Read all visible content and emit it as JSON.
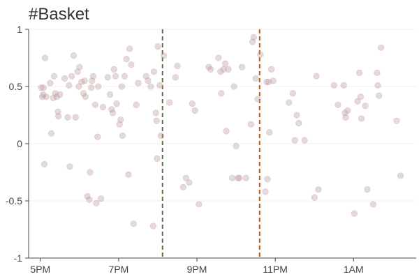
{
  "chart_data": {
    "type": "scatter",
    "title": "#Basket",
    "xlabel": "",
    "ylabel": "",
    "x_unit": "hours_after_5pm",
    "xlim": [
      -0.3,
      9.6
    ],
    "ylim": [
      -1,
      1
    ],
    "x_ticks": [
      {
        "value": 0,
        "label": "5PM"
      },
      {
        "value": 2,
        "label": "7PM"
      },
      {
        "value": 4,
        "label": "9PM"
      },
      {
        "value": 6,
        "label": "11PM"
      },
      {
        "value": 8,
        "label": "1AM"
      }
    ],
    "y_ticks": [
      {
        "value": 1,
        "label": "1"
      },
      {
        "value": 0.5,
        "label": "0.5"
      },
      {
        "value": 0,
        "label": "0"
      },
      {
        "value": -0.5,
        "label": "-0.5"
      },
      {
        "value": -1,
        "label": "-1"
      }
    ],
    "grid": true,
    "point_color": "#bc9a9a",
    "vertical_lines": [
      {
        "x": 3.12,
        "color": "#5c6e4a",
        "style": "dashed"
      },
      {
        "x": 5.6,
        "color": "#c0580e",
        "style": "dashed"
      }
    ],
    "points": [
      [
        0.02,
        0.49
      ],
      [
        0.05,
        0.41
      ],
      [
        0.07,
        0.43
      ],
      [
        0.08,
        0.49
      ],
      [
        0.1,
        -0.18
      ],
      [
        0.12,
        0.75
      ],
      [
        0.15,
        0.41
      ],
      [
        0.25,
        0.53
      ],
      [
        0.28,
        0.09
      ],
      [
        0.33,
        0.4
      ],
      [
        0.35,
        0.59
      ],
      [
        0.38,
        0.44
      ],
      [
        0.42,
        0.41
      ],
      [
        0.45,
        0.28
      ],
      [
        0.46,
        0.24
      ],
      [
        0.5,
        0.43
      ],
      [
        0.62,
        0.57
      ],
      [
        0.7,
        0.23
      ],
      [
        0.73,
        0.51
      ],
      [
        0.75,
        -0.2
      ],
      [
        0.8,
        0.59
      ],
      [
        0.85,
        0.77
      ],
      [
        0.9,
        0.23
      ],
      [
        0.95,
        0.63
      ],
      [
        0.98,
        0.5
      ],
      [
        1.0,
        0.67
      ],
      [
        1.05,
        0.54
      ],
      [
        1.1,
        0.44
      ],
      [
        1.13,
        0.55
      ],
      [
        1.15,
        0.41
      ],
      [
        1.2,
        -0.46
      ],
      [
        1.25,
        -0.49
      ],
      [
        1.27,
        -0.25
      ],
      [
        1.3,
        0.49
      ],
      [
        1.32,
        0.55
      ],
      [
        1.35,
        0.59
      ],
      [
        1.4,
        0.34
      ],
      [
        1.43,
        -0.52
      ],
      [
        1.46,
        0.06
      ],
      [
        1.48,
        0.5
      ],
      [
        1.55,
        -0.48
      ],
      [
        1.6,
        0.32
      ],
      [
        1.72,
        0.58
      ],
      [
        1.78,
        0.43
      ],
      [
        1.82,
        0.3
      ],
      [
        1.85,
        0.27
      ],
      [
        1.88,
        0.65
      ],
      [
        1.92,
        0.59
      ],
      [
        1.95,
        0.35
      ],
      [
        2.02,
        0.17
      ],
      [
        2.05,
        0.21
      ],
      [
        2.08,
        0.5
      ],
      [
        2.1,
        0.07
      ],
      [
        2.15,
        0.59
      ],
      [
        2.2,
        0.74
      ],
      [
        2.25,
        -0.27
      ],
      [
        2.28,
        0.83
      ],
      [
        2.32,
        0.69
      ],
      [
        2.38,
        -0.7
      ],
      [
        2.45,
        0.34
      ],
      [
        2.5,
        0.53
      ],
      [
        2.7,
        0.59
      ],
      [
        2.75,
        0.55
      ],
      [
        2.82,
        0.5
      ],
      [
        2.88,
        -0.72
      ],
      [
        2.9,
        0.63
      ],
      [
        2.95,
        0.27
      ],
      [
        2.97,
        0.2
      ],
      [
        2.98,
        -0.13
      ],
      [
        3.0,
        0.85
      ],
      [
        3.05,
        0.51
      ],
      [
        3.08,
        0.07
      ],
      [
        3.15,
        0.77
      ],
      [
        3.3,
        0.36
      ],
      [
        3.45,
        0.58
      ],
      [
        3.5,
        0.68
      ],
      [
        3.65,
        -0.38
      ],
      [
        3.72,
        -0.3
      ],
      [
        3.8,
        -0.34
      ],
      [
        3.88,
        0.35
      ],
      [
        3.95,
        0.29
      ],
      [
        4.05,
        -0.53
      ],
      [
        4.3,
        0.67
      ],
      [
        4.35,
        0.65
      ],
      [
        4.55,
        0.75
      ],
      [
        4.6,
        0.63
      ],
      [
        4.62,
        0.44
      ],
      [
        4.68,
        0.65
      ],
      [
        4.72,
        0.7
      ],
      [
        4.75,
        0.11
      ],
      [
        4.8,
        0.65
      ],
      [
        4.9,
        -0.3
      ],
      [
        4.95,
        0.5
      ],
      [
        5.0,
        -0.02
      ],
      [
        5.05,
        -0.3
      ],
      [
        5.08,
        -0.3
      ],
      [
        5.15,
        0.67
      ],
      [
        5.25,
        -0.3
      ],
      [
        5.38,
        0.17
      ],
      [
        5.42,
        0.89
      ],
      [
        5.45,
        0.93
      ],
      [
        5.5,
        0.57
      ],
      [
        5.55,
        0.39
      ],
      [
        5.62,
        0.78
      ],
      [
        5.75,
        -0.42
      ],
      [
        5.78,
        0.54
      ],
      [
        5.8,
        -0.31
      ],
      [
        5.83,
        0.54
      ],
      [
        5.85,
        0.1
      ],
      [
        5.9,
        0.65
      ],
      [
        5.95,
        0.55
      ],
      [
        6.35,
        0.36
      ],
      [
        6.45,
        0.44
      ],
      [
        6.5,
        0.03
      ],
      [
        6.55,
        0.25
      ],
      [
        6.6,
        0.18
      ],
      [
        6.75,
        0.03
      ],
      [
        7.0,
        -0.47
      ],
      [
        7.05,
        0.59
      ],
      [
        7.1,
        -0.4
      ],
      [
        7.5,
        0.51
      ],
      [
        7.6,
        0.34
      ],
      [
        7.75,
        0.51
      ],
      [
        7.78,
        0.27
      ],
      [
        7.8,
        0.23
      ],
      [
        7.85,
        0.29
      ],
      [
        8.02,
        -0.61
      ],
      [
        8.1,
        0.37
      ],
      [
        8.15,
        0.62
      ],
      [
        8.18,
        0.41
      ],
      [
        8.2,
        0.22
      ],
      [
        8.3,
        0.33
      ],
      [
        8.35,
        -0.4
      ],
      [
        8.5,
        -0.53
      ],
      [
        8.6,
        0.62
      ],
      [
        8.62,
        0.51
      ],
      [
        8.65,
        0.42
      ],
      [
        8.7,
        0.84
      ],
      [
        9.1,
        0.2
      ],
      [
        9.2,
        -0.28
      ]
    ]
  }
}
